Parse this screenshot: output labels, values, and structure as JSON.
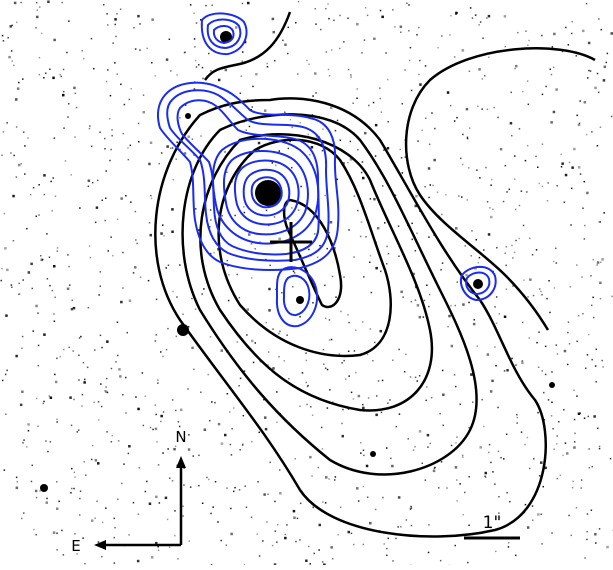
{
  "figure": {
    "compass": {
      "north": "N",
      "east": "E"
    },
    "scale_bar": {
      "label": "1\""
    },
    "colors": {
      "background": "#ffffff",
      "black_contours": "#000000",
      "blue_contours": "#1a2cf0",
      "noise": "#000000"
    }
  }
}
